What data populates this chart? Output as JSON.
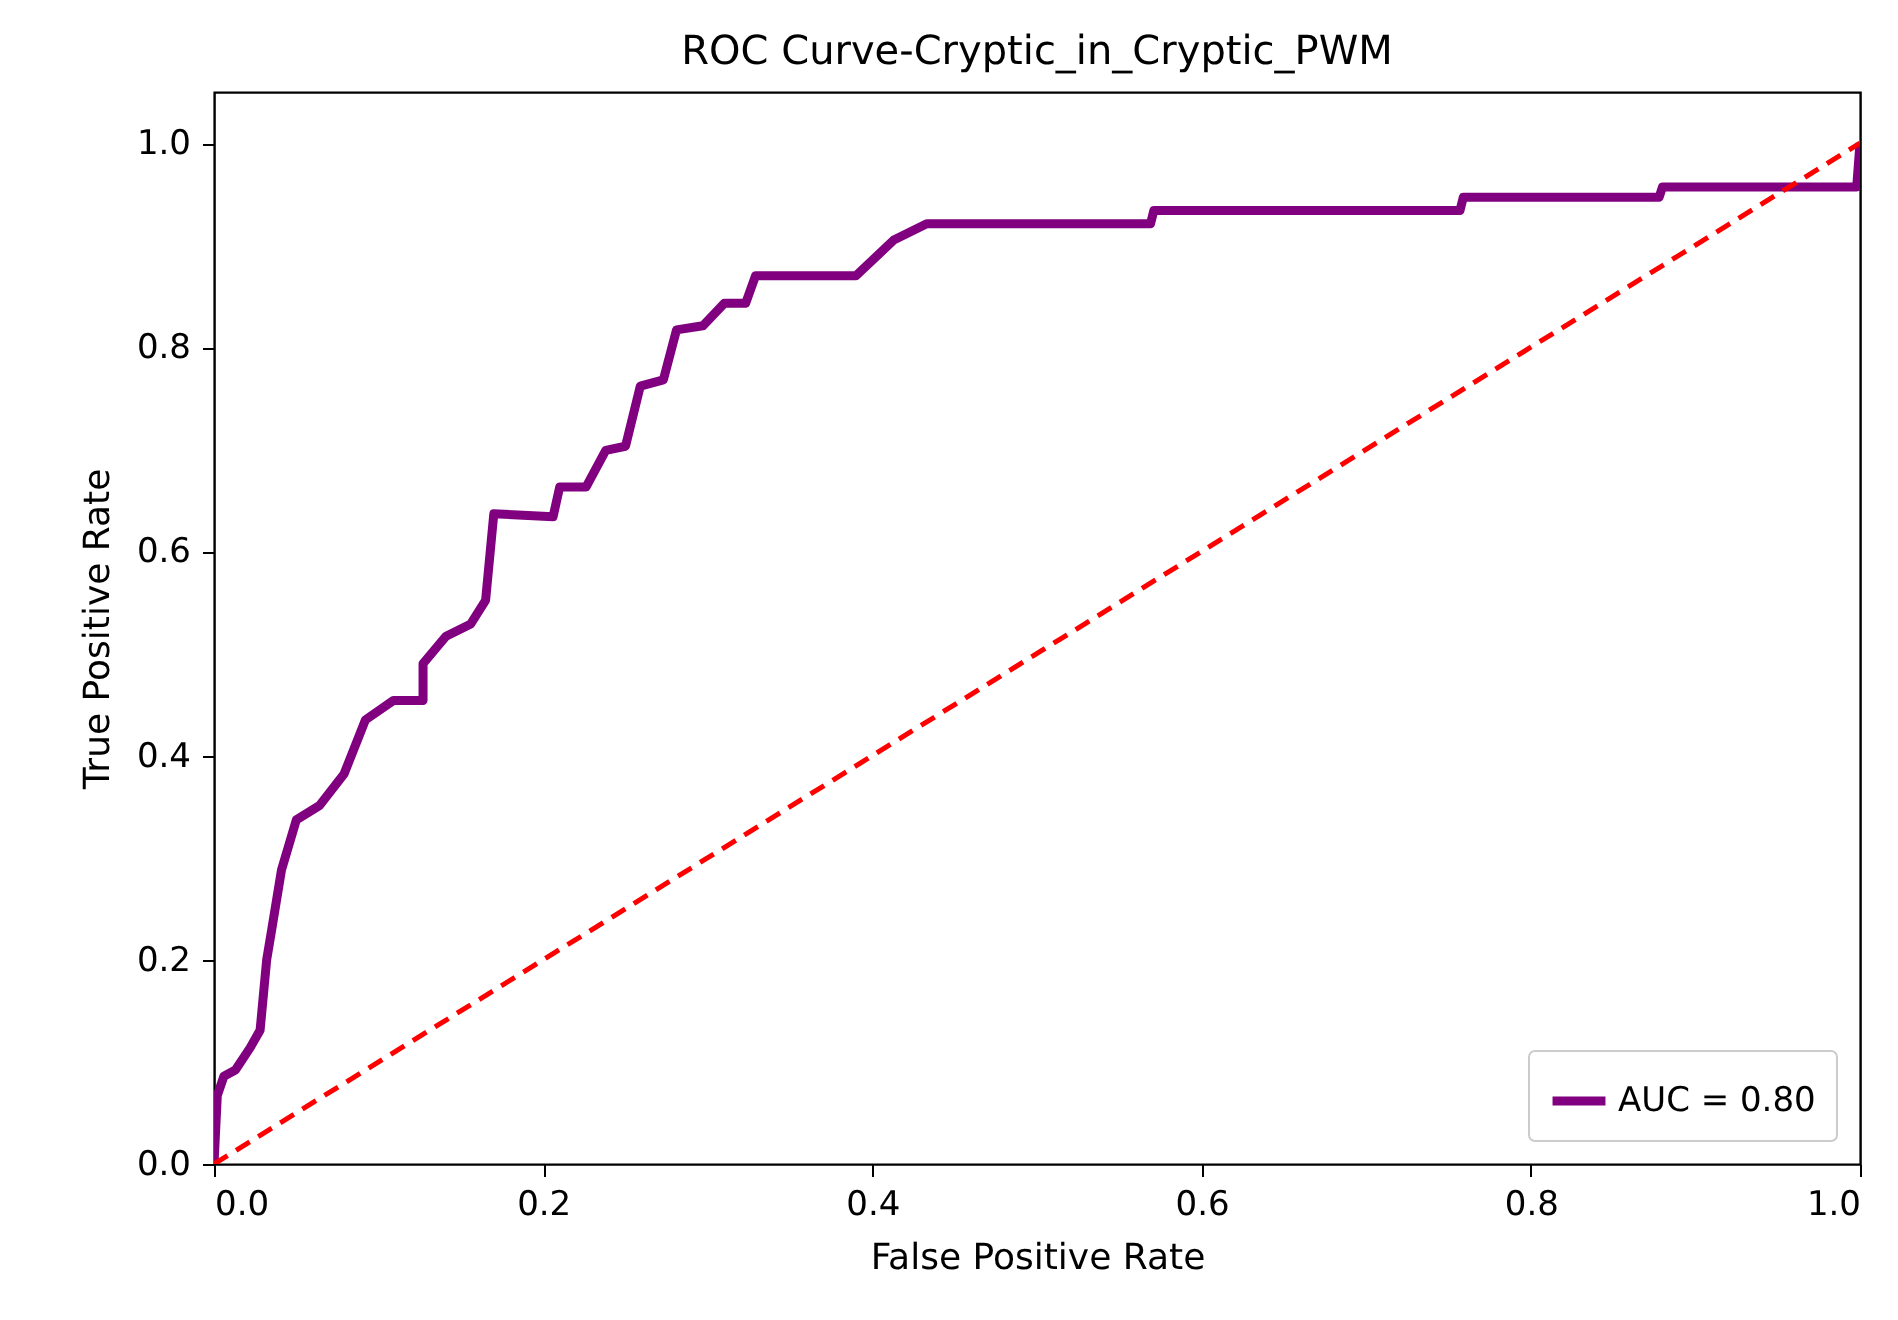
{
  "chart_data": {
    "type": "line",
    "title": "ROC Curve-Cryptic_in_Cryptic_PWM",
    "xlabel": "False Positive Rate",
    "ylabel": "True Positive Rate",
    "xlim": [
      0,
      1
    ],
    "ylim": [
      0,
      1.05
    ],
    "xticks": [
      {
        "value": 0,
        "label": "0.0"
      },
      0.2,
      0.4,
      0.6,
      0.8,
      {
        "value": 1,
        "label": "1.0"
      }
    ],
    "yticks": [
      {
        "value": 0,
        "label": "0.0"
      },
      0.2,
      0.4,
      0.6,
      0.8,
      {
        "value": 1,
        "label": "1.0"
      }
    ],
    "grid": false,
    "legend": "bottom right",
    "marker": "none",
    "series": [
      {
        "name": "AUC = 0.80",
        "color": "#800080",
        "line_style": "solid",
        "x": [
          0,
          0.002,
          0.006,
          0.013,
          0.022,
          0.028,
          0.032,
          0.035,
          0.041,
          0.05,
          0.064,
          0.079,
          0.092,
          0.109,
          0.127,
          0.127,
          0.141,
          0.156,
          0.165,
          0.17,
          0.206,
          0.21,
          0.226,
          0.238,
          0.25,
          0.259,
          0.273,
          0.281,
          0.297,
          0.31,
          0.323,
          0.329,
          0.39,
          0.413,
          0.433,
          0.569,
          0.571,
          0.757,
          0.759,
          0.878,
          0.88,
          0.998,
          1.0
        ],
        "values": [
          0,
          0.067,
          0.086,
          0.092,
          0.114,
          0.131,
          0.2,
          0.229,
          0.288,
          0.337,
          0.351,
          0.382,
          0.435,
          0.454,
          0.454,
          0.49,
          0.517,
          0.529,
          0.552,
          0.637,
          0.634,
          0.663,
          0.663,
          0.699,
          0.703,
          0.762,
          0.768,
          0.817,
          0.821,
          0.843,
          0.843,
          0.87,
          0.87,
          0.905,
          0.921,
          0.921,
          0.934,
          0.934,
          0.947,
          0.947,
          0.957,
          0.957,
          1.0
        ]
      },
      {
        "color": "#ff0000",
        "line_style": "dashed",
        "x": [
          0,
          1
        ],
        "values": [
          0,
          1
        ]
      }
    ]
  }
}
